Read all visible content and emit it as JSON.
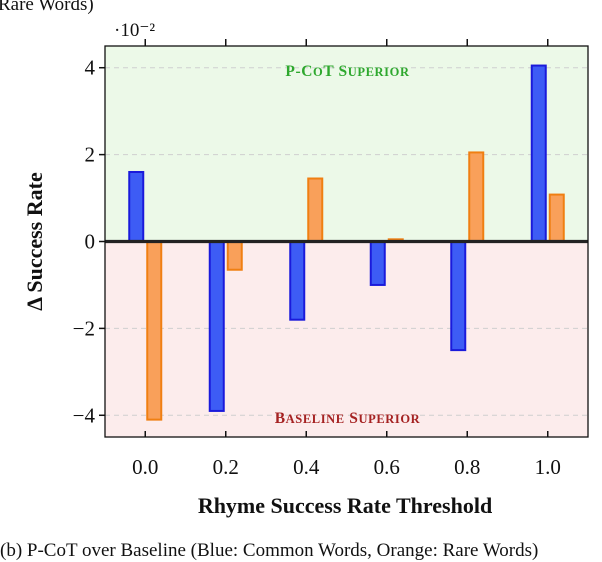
{
  "top_caption": "Rare Words)",
  "bottom_caption": "(b) P-CoT over Baseline (Blue: Common Words, Orange: Rare Words)",
  "colors": {
    "common": "#3d5cf5",
    "common_edge": "#1a1adb",
    "rare": "#f9a05a",
    "rare_edge": "#f07f12",
    "superior_bg": "#ecf9e8",
    "inferior_bg": "#fcecec",
    "superior_text": "#2ea82e",
    "inferior_text": "#a52222"
  },
  "chart_data": {
    "type": "bar",
    "xlabel": "Rhyme Success Rate Threshold",
    "ylabel": "Δ Success Rate",
    "y_scale_label": "·10⁻²",
    "y_multiplier": 0.01,
    "ylim": [
      -4.5,
      4.5
    ],
    "xlim": [
      -0.1,
      1.1
    ],
    "categories": [
      0.0,
      0.2,
      0.4,
      0.6,
      0.8,
      1.0
    ],
    "x_tick_labels": [
      "0.0",
      "0.2",
      "0.4",
      "0.6",
      "0.8",
      "1.0"
    ],
    "y_ticks": [
      -4,
      -2,
      0,
      2,
      4
    ],
    "y_tick_labels": [
      "−4",
      "−2",
      "0",
      "2",
      "4"
    ],
    "series": [
      {
        "name": "Common Words",
        "color_key": "common",
        "values": [
          1.6,
          -3.9,
          -1.8,
          -1.0,
          -2.5,
          4.05
        ]
      },
      {
        "name": "Rare Words",
        "color_key": "rare",
        "values": [
          -4.1,
          -0.65,
          1.45,
          0.05,
          2.05,
          1.08
        ]
      }
    ],
    "annotations": {
      "superior": "P-CoT Superior",
      "inferior": "Baseline Superior"
    },
    "grid": true
  }
}
